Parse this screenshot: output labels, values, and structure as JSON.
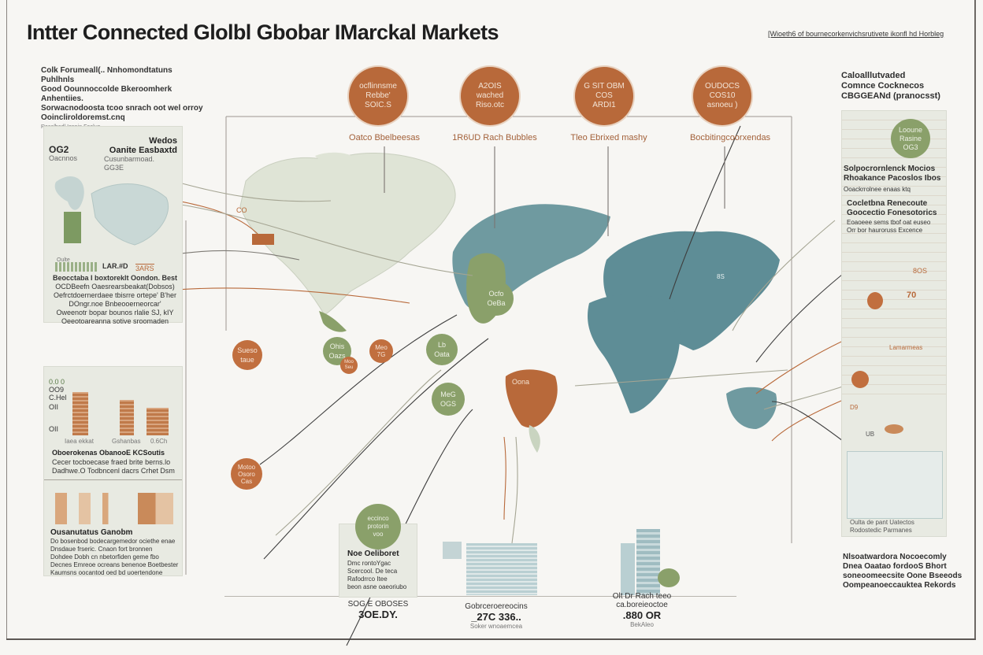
{
  "header": {
    "title": "Intter Connected Glolbl Gbobar IMarckal Markets",
    "subtitle": "[Wioeth6 of bournecorkenvichsrutivete ikonfl hd Horbleg"
  },
  "intro": {
    "lines": [
      "Colk Forumeall(.. Nnhomondtatuns Puhlhnls",
      "Good Oounnoccolde Bkeroomherk Anhentiies.",
      "Sorwacnodoosta tcoo snrach oot wel orroy",
      "Ooincliroldoremst.cnq"
    ],
    "fine": "Rosalhedl Ionnin.Foolun"
  },
  "top_hubs": [
    {
      "text": "ocflinnsme\nRebbe'\nSOIC.S",
      "caption": "Oatco Bbelbeesas"
    },
    {
      "text": "A2OIS\nwached\nRiso.otc",
      "caption": "1R6UD Rach Bubbles"
    },
    {
      "text": "G SIT OBM\nCOS\nARDI1",
      "caption": "Tleo Ebrixed mashy"
    },
    {
      "text": "OUDOCS\nCOS10\nasnoeu )",
      "caption": "Bocbitingcoorxendas"
    }
  ],
  "left_panel_1": {
    "stat": "OG2",
    "stat_label": "Oacnnos",
    "heading": "Wedos\nOanite Easbaxtd",
    "sublabel": "Cusunbarmoad.",
    "sublabel2": "GG3E",
    "mini_label": "LAR.#D",
    "mini_value": "3ARS",
    "side_label": "Oulte",
    "desc": [
      "Beocctaba I boxtoreklt Oondon. Best",
      "OCDBeefn Oaesrearsbeakat(Dobsos)",
      "Oefrctdoernerdaee tbisrre ortepe' B'her",
      "DOngr.noe Bnbeooerneorcar'",
      "Oweenotr bopar bounos rlalie SJ, kIY",
      "Oeeotoareanna sotive sroomaden"
    ]
  },
  "left_panel_2": {
    "chart_labels": [
      "0.0 0",
      "OO9",
      "C.Hel",
      "OII",
      "OII"
    ],
    "axis_labels": [
      "Iaea ekkat",
      "Gshanbas",
      "0.6Ch"
    ],
    "heading": "Oboerokenas ObanooE KCSoutis",
    "desc": [
      "Cecer tocboecase fraed brite berns.lo",
      "Dadhwe.O Todbncenl dacrs Crhet Dsm"
    ],
    "heading2": "Ousanutatus Ganobm",
    "desc2": [
      "Do bosenbod bodecargemedor ociethe enae",
      "Dnsdaue frseric. Cnaon fort bronnen",
      "Dohdee Dobh cn nbetorfiden geme fbo",
      "Decnes Emreoe ocreans benenoe Boetbester",
      "Kaumsns oocantod oed bd uoertendone"
    ]
  },
  "right_col": {
    "heading": "Caloalllutvaded\nComnce Cocknecos\nCBGGEANd (pranocsst)",
    "badge": "Looune\nRasine\nOG3",
    "block1_title": "Solpocrornlenck Mocios\nRhoakance Pacoslos Ibos",
    "block1_sub": "Ooackrrolnee enaas ktq",
    "block2_title": "Cocletbna Renecoute\nGoocectio Fonesotorics",
    "block2_sub": "Eoaoeee sems tbof oat euseo\nOrr bor hauroruss Excence",
    "notes": [
      "8OS",
      "70",
      "Lamarmeas",
      "D9",
      "UB"
    ],
    "footer": "Oulta de pant Uatectos\nRodostedic Parmanes",
    "closing": "Nlsoatwardora Nocoecomly\nDnea Oaatao fordooS Bhort\nsoneoomeecsite Oone Bseeods\nOompeanoeccauktea Rekords"
  },
  "map_hubs": [
    {
      "text": "Sueso\ntaue",
      "tone": "orange"
    },
    {
      "text": "Ohis\nOazs",
      "tone": "green"
    },
    {
      "text": "Moo\nSeu",
      "tone": "orange"
    },
    {
      "text": "Meo\n7G",
      "tone": "orange"
    },
    {
      "text": "Lb\nOata",
      "tone": "green"
    },
    {
      "text": "Ocfo\nOeBa",
      "tone": "green"
    },
    {
      "text": "MeG\nOGS",
      "tone": "green"
    },
    {
      "text": "Motoo\nOsoro\nCas",
      "tone": "orange"
    }
  ],
  "map_labels": [
    "CO",
    "Oona",
    "8S"
  ],
  "bottom": {
    "card": {
      "badge": "eccinco\nprotorin\nvoo",
      "title": "Noe Oeliboret",
      "lines": [
        "Dmc rontoYgac",
        "Scercool. De teca",
        "Rafodrrco Itee",
        "beon asne oaeoriubo"
      ]
    },
    "stats": [
      {
        "label": "SOG E OBOSES",
        "value": "3OE.DY.",
        "sub": ""
      },
      {
        "label": "Gobrceroereocins",
        "value": "_27C 336..",
        "sub": "Soker wnoaemcea"
      },
      {
        "label": "Olt Dr Rach teeo\nca.boreieoctoe",
        "value": ".880 OR",
        "sub": "BekAleo"
      }
    ]
  },
  "colors": {
    "rust": "#b8693a",
    "sage": "#8aa06a",
    "teal": "#5e8d96",
    "panel": "#e8eae2",
    "pale_land": "#dfe4d6"
  }
}
